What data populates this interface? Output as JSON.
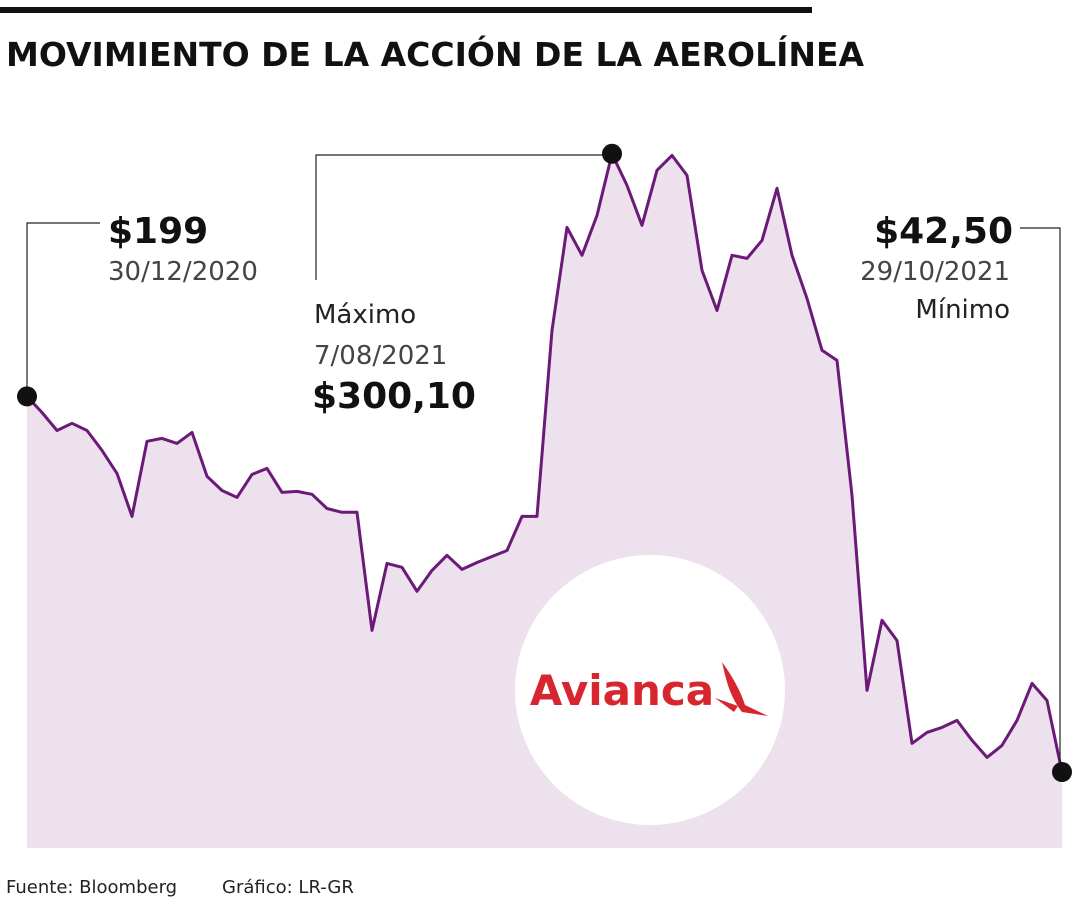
{
  "chart_data": {
    "type": "area",
    "title": "MOVIMIENTO DE LA ACCIÓN DE LA AEROLÍNEA",
    "values": [
      199,
      192.3,
      184.8,
      187.8,
      184.8,
      176.5,
      166.9,
      149,
      180.3,
      181.5,
      179.4,
      184,
      165.7,
      159.8,
      156.9,
      166.5,
      169,
      159,
      159.4,
      158.2,
      152.3,
      150.7,
      150.7,
      101.5,
      129.4,
      127.8,
      117.8,
      126.5,
      132.8,
      126.9,
      129.8,
      132.3,
      134.8,
      149,
      149,
      226.5,
      269.4,
      257.8,
      274.4,
      300.1,
      286.9,
      270.3,
      293.2,
      299.4,
      291.1,
      251.5,
      234.8,
      257.8,
      256.5,
      264,
      285.7,
      257.8,
      239.8,
      218.2,
      214,
      157.8,
      76.5,
      105.7,
      97.3,
      54.4,
      59,
      61.1,
      64,
      55.7,
      48.6,
      53.6,
      64,
      79.4,
      72.3,
      42.5
    ],
    "color": "#6b1a78",
    "fill_color": "#ede1ee",
    "ylim": [
      10,
      320
    ],
    "annotations": [
      {
        "date": "30/12/2020",
        "value": 199,
        "value_label": "$199"
      },
      {
        "text": "Máximo",
        "date": "7/08/2021",
        "value": 300.1,
        "value_label": "$300,10"
      },
      {
        "text": "Mínimo",
        "date": "29/10/2021",
        "value": 42.5,
        "value_label": "$42,50"
      }
    ],
    "logo": "Avianca",
    "source": "Fuente: Bloomberg",
    "credit": "Gráfico: LR-GR"
  }
}
